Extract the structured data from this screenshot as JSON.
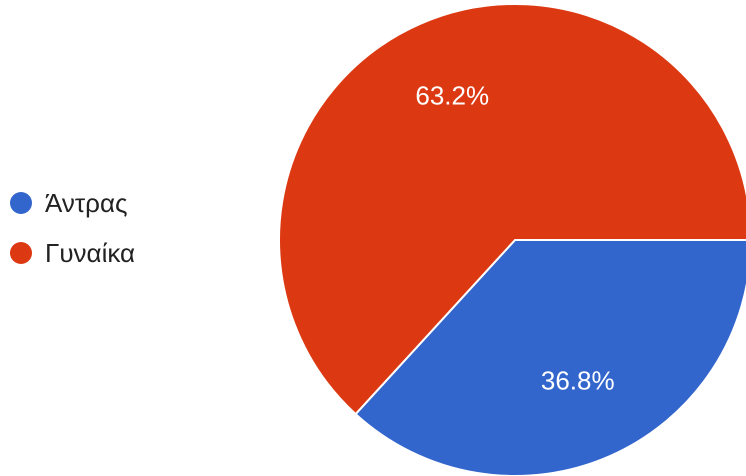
{
  "chart_data": {
    "type": "pie",
    "title": "",
    "categories": [
      "Άντρας",
      "Γυναίκα"
    ],
    "values": [
      36.8,
      63.2
    ],
    "labels": [
      "36.8%",
      "63.2%"
    ],
    "colors": [
      "#3366cc",
      "#dc3912"
    ],
    "legend_position": "left"
  }
}
